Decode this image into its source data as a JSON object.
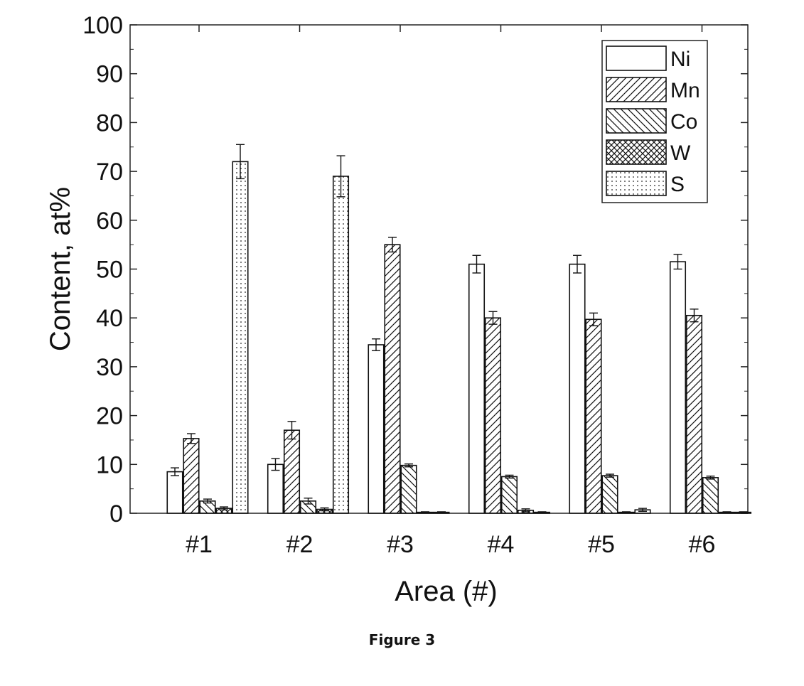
{
  "figure_caption": "Figure 3",
  "chart_data": {
    "type": "bar",
    "title": "",
    "xlabel": "Area (#)",
    "ylabel": "Content, at%",
    "ylim": [
      0,
      100
    ],
    "yticks": [
      "0",
      "10",
      "20",
      "30",
      "40",
      "50",
      "60",
      "70",
      "80",
      "90",
      "100"
    ],
    "categories": [
      "#1",
      "#2",
      "#3",
      "#4",
      "#5",
      "#6"
    ],
    "legend_position": "top-right",
    "grid": false,
    "series": [
      {
        "name": "Ni",
        "pattern": "none",
        "values": [
          8.5,
          10.0,
          34.5,
          51.0,
          51.0,
          51.5
        ],
        "errors": [
          0.8,
          1.2,
          1.2,
          1.8,
          1.8,
          1.5
        ]
      },
      {
        "name": "Mn",
        "pattern": "forward-hatch",
        "values": [
          15.3,
          17.0,
          55.0,
          40.0,
          39.7,
          40.5
        ],
        "errors": [
          1.0,
          1.8,
          1.5,
          1.3,
          1.3,
          1.3
        ]
      },
      {
        "name": "Co",
        "pattern": "back-hatch",
        "values": [
          2.5,
          2.5,
          9.8,
          7.5,
          7.7,
          7.3
        ],
        "errors": [
          0.4,
          0.6,
          0.3,
          0.3,
          0.3,
          0.3
        ]
      },
      {
        "name": "W",
        "pattern": "cross-hatch",
        "values": [
          1.0,
          0.8,
          0.2,
          0.6,
          0.2,
          0.2
        ],
        "errors": [
          0.3,
          0.3,
          0.1,
          0.3,
          0.1,
          0.1
        ]
      },
      {
        "name": "S",
        "pattern": "dots",
        "values": [
          72.0,
          69.0,
          0.2,
          0.2,
          0.7,
          0.2
        ],
        "errors": [
          3.5,
          4.2,
          0.1,
          0.1,
          0.3,
          0.1
        ]
      }
    ]
  }
}
